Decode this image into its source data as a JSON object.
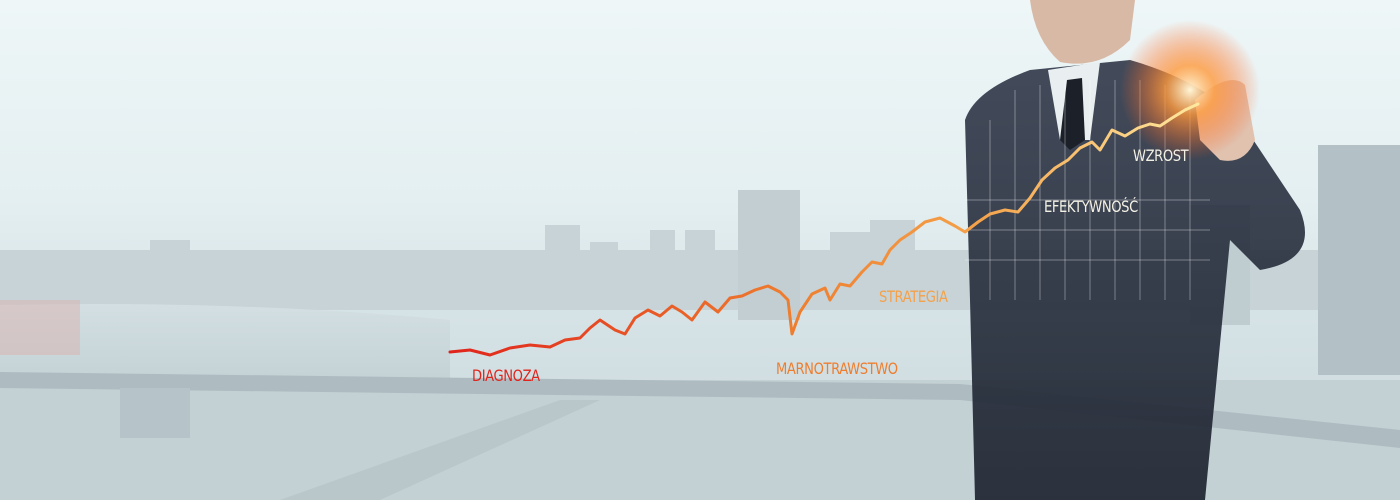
{
  "chart_data": {
    "type": "line",
    "labels": [
      {
        "text": "DIAGNOZA",
        "color": "#e0241c"
      },
      {
        "text": "MARNOTRAWSTWO",
        "color": "#ee7d2e"
      },
      {
        "text": "STRATEGIA",
        "color": "#f4a14a"
      },
      {
        "text": "EFEKTYWNOŚĆ",
        "color": "#f3f0e4"
      },
      {
        "text": "WZROST",
        "color": "#f3f0e4"
      }
    ],
    "series": [
      {
        "color_start": "#e0241c",
        "color_mid": "#f08a2c",
        "color_end": "#ffe9a0"
      }
    ]
  },
  "colors": {
    "sky": "#eef6f7",
    "city": "#b9c7cc",
    "suit": "#2a3140",
    "glow": "#ff7a2c"
  }
}
